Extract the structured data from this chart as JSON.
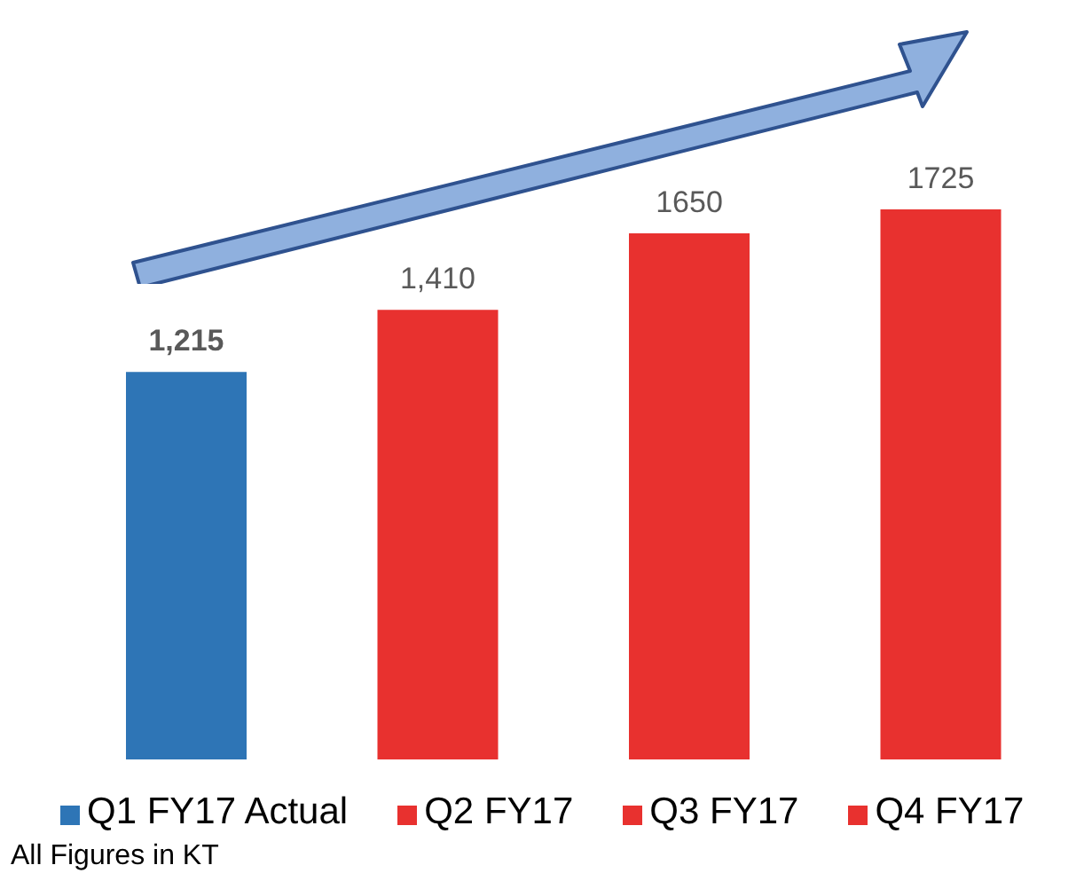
{
  "chart_data": {
    "type": "bar",
    "categories": [
      null,
      null,
      null,
      null
    ],
    "stacked": true,
    "series": [
      {
        "name": "Q1 FY17 Actual",
        "color": "#2e75b6",
        "values": [
          1215,
          null,
          null,
          null
        ],
        "value_labels": [
          "1,215",
          null,
          null,
          null
        ]
      },
      {
        "name": "Q2 FY17",
        "color": "#e8312f",
        "values": [
          null,
          1410,
          null,
          null
        ],
        "value_labels": [
          null,
          "1,410",
          null,
          null
        ]
      },
      {
        "name": "Q3 FY17",
        "color": "#e8312f",
        "values": [
          null,
          null,
          1650,
          null
        ],
        "value_labels": [
          null,
          null,
          "1650",
          null
        ]
      },
      {
        "name": "Q4 FY17",
        "color": "#e8312f",
        "values": [
          null,
          null,
          null,
          1725
        ],
        "value_labels": [
          null,
          null,
          null,
          "1725"
        ]
      }
    ],
    "legend": "bottom",
    "annotations": [
      "All Figures in KT"
    ]
  }
}
